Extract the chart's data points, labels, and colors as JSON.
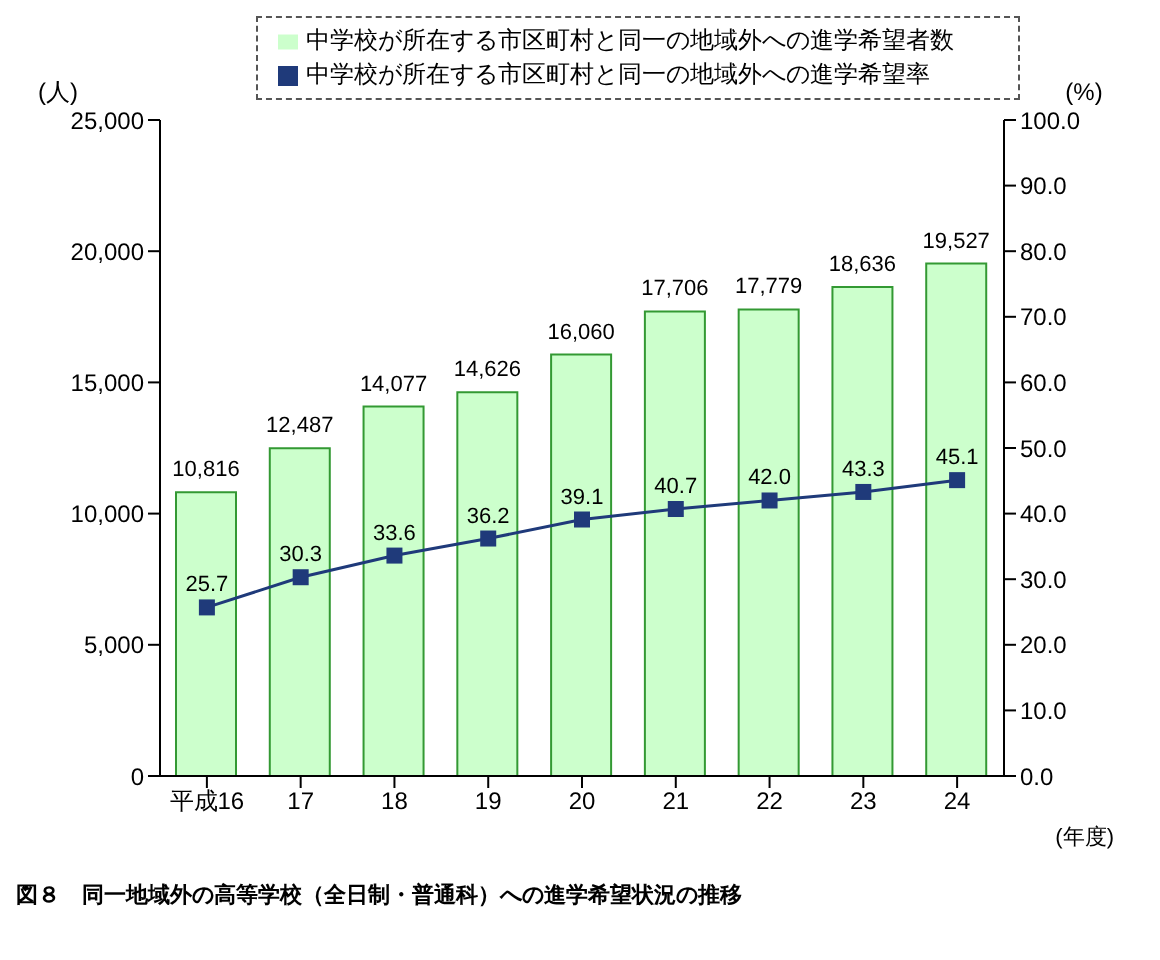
{
  "chart_data": {
    "type": "bar",
    "categories": [
      "平成16",
      "17",
      "18",
      "19",
      "20",
      "21",
      "22",
      "23",
      "24"
    ],
    "ylabel": "(人)",
    "y2label": "(%)",
    "xlabel": "(年度)",
    "ylim": [
      0,
      25000
    ],
    "yticks": [
      {
        "value": 0,
        "label": "0"
      },
      {
        "value": 5000,
        "label": "5,000"
      },
      {
        "value": 10000,
        "label": "10,000"
      },
      {
        "value": 15000,
        "label": "15,000"
      },
      {
        "value": 20000,
        "label": "20,000"
      },
      {
        "value": 25000,
        "label": "25,000"
      }
    ],
    "y2lim": [
      0,
      100
    ],
    "y2ticks": [
      {
        "value": 0,
        "label": "0.0"
      },
      {
        "value": 10,
        "label": "10.0"
      },
      {
        "value": 20,
        "label": "20.0"
      },
      {
        "value": 30,
        "label": "30.0"
      },
      {
        "value": 40,
        "label": "40.0"
      },
      {
        "value": 50,
        "label": "50.0"
      },
      {
        "value": 60,
        "label": "60.0"
      },
      {
        "value": 70,
        "label": "70.0"
      },
      {
        "value": 80,
        "label": "80.0"
      },
      {
        "value": 90,
        "label": "90.0"
      },
      {
        "value": 100,
        "label": "100.0"
      }
    ],
    "legend": "top",
    "marker": "square",
    "series": [
      {
        "name": "中学校が所在する市区町村と同一の地域外への進学希望者数",
        "color": "#ccffcc",
        "values": [
          10816,
          12487,
          14077,
          14626,
          16060,
          17706,
          17779,
          18636,
          19527
        ],
        "value_labels": [
          "10,816",
          "12,487",
          "14,077",
          "14,626",
          "16,060",
          "17,706",
          "17,779",
          "18,636",
          "19,527"
        ]
      },
      {
        "name": "中学校が所在する市区町村と同一の地域外への進学希望率",
        "type": "line",
        "axis": "y2",
        "color": "#1f3a7a",
        "values": [
          25.7,
          30.3,
          33.6,
          36.2,
          39.1,
          40.7,
          42.0,
          43.3,
          45.1
        ],
        "value_labels": [
          "25.7",
          "30.3",
          "33.6",
          "36.2",
          "39.1",
          "40.7",
          "42.0",
          "43.3",
          "45.1"
        ]
      }
    ],
    "annotations": [
      "図８　同一地域外の高等学校（全日制・普通科）への進学希望状況の推移"
    ]
  }
}
